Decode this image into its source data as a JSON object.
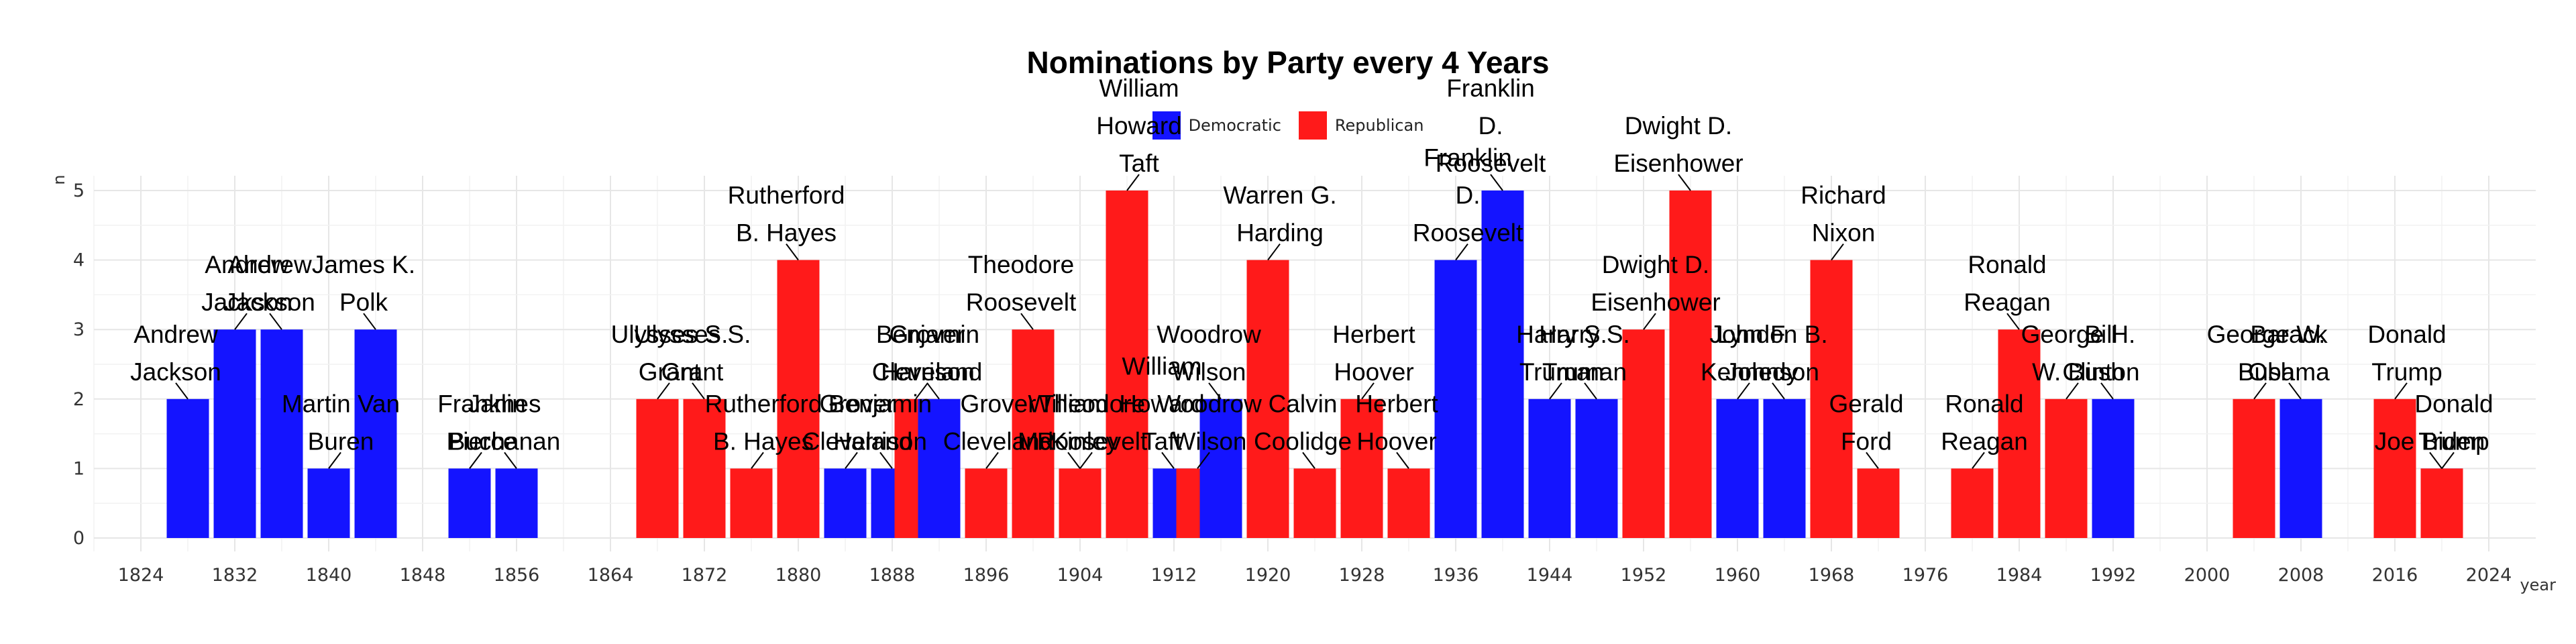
{
  "chart_data": {
    "type": "bar",
    "title": "Nominations by Party every 4 Years",
    "xlabel": "year",
    "ylabel": "n",
    "xlim": [
      1820,
      2028
    ],
    "ylim": [
      0,
      5
    ],
    "x_ticks": [
      1824,
      1832,
      1840,
      1848,
      1856,
      1864,
      1872,
      1880,
      1888,
      1896,
      1904,
      1912,
      1920,
      1928,
      1936,
      1944,
      1952,
      1960,
      1968,
      1976,
      1984,
      1992,
      2000,
      2008,
      2016,
      2024
    ],
    "y_ticks": [
      0,
      1,
      2,
      3,
      4,
      5
    ],
    "grid": true,
    "legend_position": "top",
    "series": [
      {
        "name": "Democratic",
        "color": "#1414FF"
      },
      {
        "name": "Republican",
        "color": "#FF1A1A"
      }
    ],
    "bars": [
      {
        "year": 1828,
        "party": "Democratic",
        "n": 2
      },
      {
        "year": 1832,
        "party": "Democratic",
        "n": 3
      },
      {
        "year": 1836,
        "party": "Democratic",
        "n": 3
      },
      {
        "year": 1840,
        "party": "Democratic",
        "n": 1
      },
      {
        "year": 1844,
        "party": "Democratic",
        "n": 3
      },
      {
        "year": 1852,
        "party": "Democratic",
        "n": 1
      },
      {
        "year": 1856,
        "party": "Democratic",
        "n": 1
      },
      {
        "year": 1868,
        "party": "Republican",
        "n": 2
      },
      {
        "year": 1872,
        "party": "Republican",
        "n": 2
      },
      {
        "year": 1876,
        "party": "Republican",
        "n": 1
      },
      {
        "year": 1880,
        "party": "Republican",
        "n": 4
      },
      {
        "year": 1884,
        "party": "Democratic",
        "n": 1
      },
      {
        "year": 1888,
        "party": "Democratic",
        "n": 1
      },
      {
        "year": 1890,
        "party": "Republican",
        "n": 2
      },
      {
        "year": 1892,
        "party": "Democratic",
        "n": 2
      },
      {
        "year": 1896,
        "party": "Republican",
        "n": 1
      },
      {
        "year": 1900,
        "party": "Republican",
        "n": 3
      },
      {
        "year": 1904,
        "party": "Republican",
        "n": 1
      },
      {
        "year": 1908,
        "party": "Republican",
        "n": 5
      },
      {
        "year": 1912,
        "party": "Democratic",
        "n": 1
      },
      {
        "year": 1914,
        "party": "Republican",
        "n": 1
      },
      {
        "year": 1916,
        "party": "Democratic",
        "n": 2
      },
      {
        "year": 1920,
        "party": "Republican",
        "n": 4
      },
      {
        "year": 1924,
        "party": "Republican",
        "n": 1
      },
      {
        "year": 1928,
        "party": "Republican",
        "n": 2
      },
      {
        "year": 1932,
        "party": "Republican",
        "n": 1
      },
      {
        "year": 1936,
        "party": "Democratic",
        "n": 4
      },
      {
        "year": 1940,
        "party": "Democratic",
        "n": 5
      },
      {
        "year": 1944,
        "party": "Democratic",
        "n": 2
      },
      {
        "year": 1948,
        "party": "Democratic",
        "n": 2
      },
      {
        "year": 1952,
        "party": "Republican",
        "n": 3
      },
      {
        "year": 1956,
        "party": "Republican",
        "n": 5
      },
      {
        "year": 1960,
        "party": "Democratic",
        "n": 2
      },
      {
        "year": 1964,
        "party": "Democratic",
        "n": 2
      },
      {
        "year": 1968,
        "party": "Republican",
        "n": 4
      },
      {
        "year": 1972,
        "party": "Republican",
        "n": 1
      },
      {
        "year": 1980,
        "party": "Republican",
        "n": 1
      },
      {
        "year": 1984,
        "party": "Republican",
        "n": 3
      },
      {
        "year": 1988,
        "party": "Republican",
        "n": 2
      },
      {
        "year": 1992,
        "party": "Democratic",
        "n": 2
      },
      {
        "year": 2004,
        "party": "Republican",
        "n": 2
      },
      {
        "year": 2008,
        "party": "Democratic",
        "n": 2
      },
      {
        "year": 2016,
        "party": "Republican",
        "n": 2
      },
      {
        "year": 2020,
        "party": "Democratic",
        "n": 1
      },
      {
        "year": 2020,
        "party": "Republican",
        "n": 1
      }
    ],
    "annotations": [
      {
        "text": [
          "Andrew",
          "Jackson"
        ],
        "year": 1828,
        "n": 2
      },
      {
        "text": [
          "Andrew",
          "Jackson"
        ],
        "year": 1832,
        "n": 3
      },
      {
        "text": [
          "Andrew",
          "Jackson"
        ],
        "year": 1836,
        "n": 3
      },
      {
        "text": [
          "Martin Van",
          "Buren"
        ],
        "year": 1840,
        "n": 1
      },
      {
        "text": [
          "James K.",
          "Polk"
        ],
        "year": 1844,
        "n": 3
      },
      {
        "text": [
          "Franklin",
          "Pierce"
        ],
        "year": 1852,
        "n": 1
      },
      {
        "text": [
          "James",
          "Buchanan"
        ],
        "year": 1856,
        "n": 1
      },
      {
        "text": [
          "Ulysses S.",
          "Grant"
        ],
        "year": 1868,
        "n": 2
      },
      {
        "text": [
          "Ulysses S.",
          "Grant"
        ],
        "year": 1872,
        "n": 2
      },
      {
        "text": [
          "Rutherford",
          "B. Hayes"
        ],
        "year": 1876,
        "n": 1
      },
      {
        "text": [
          "Rutherford",
          "B. Hayes"
        ],
        "year": 1880,
        "n": 4
      },
      {
        "text": [
          "Grover",
          "Cleveland"
        ],
        "year": 1884,
        "n": 1
      },
      {
        "text": [
          "Benjamin",
          "Harrison"
        ],
        "year": 1888,
        "n": 1
      },
      {
        "text": [
          "Benjamin",
          "Harrison"
        ],
        "year": 1890,
        "n": 2
      },
      {
        "text": [
          "Grover",
          "Cleveland"
        ],
        "year": 1892,
        "n": 2
      },
      {
        "text": [
          "Grover",
          "Cleveland"
        ],
        "year": 1896,
        "n": 1
      },
      {
        "text": [
          "Theodore",
          "Roosevelt"
        ],
        "year": 1900,
        "n": 3
      },
      {
        "text": [
          "Theodore",
          "Roosevelt"
        ],
        "year": 1904,
        "n": 1
      },
      {
        "text": [
          "William",
          "McKinley"
        ],
        "year": 1904,
        "n": 1
      },
      {
        "text": [
          "William",
          "Howard",
          "Taft"
        ],
        "year": 1908,
        "n": 5
      },
      {
        "text": [
          "William",
          "Howard",
          "Taft"
        ],
        "year": 1912,
        "n": 1
      },
      {
        "text": [
          "Woodrow",
          "Wilson"
        ],
        "year": 1914,
        "n": 1
      },
      {
        "text": [
          "Woodrow",
          "Wilson"
        ],
        "year": 1916,
        "n": 2
      },
      {
        "text": [
          "Warren G.",
          "Harding"
        ],
        "year": 1920,
        "n": 4
      },
      {
        "text": [
          "Calvin",
          "Coolidge"
        ],
        "year": 1924,
        "n": 1
      },
      {
        "text": [
          "Herbert",
          "Hoover"
        ],
        "year": 1928,
        "n": 2
      },
      {
        "text": [
          "Herbert",
          "Hoover"
        ],
        "year": 1932,
        "n": 1
      },
      {
        "text": [
          "Franklin",
          "D.",
          "Roosevelt"
        ],
        "year": 1936,
        "n": 4
      },
      {
        "text": [
          "Franklin",
          "D.",
          "Roosevelt"
        ],
        "year": 1940,
        "n": 5
      },
      {
        "text": [
          "Harry S.",
          "Truman"
        ],
        "year": 1944,
        "n": 2
      },
      {
        "text": [
          "Harry S.",
          "Truman"
        ],
        "year": 1948,
        "n": 2
      },
      {
        "text": [
          "Dwight D.",
          "Eisenhower"
        ],
        "year": 1952,
        "n": 3
      },
      {
        "text": [
          "Dwight D.",
          "Eisenhower"
        ],
        "year": 1956,
        "n": 5
      },
      {
        "text": [
          "John F.",
          "Kennedy"
        ],
        "year": 1960,
        "n": 2
      },
      {
        "text": [
          "Lyndon B.",
          "Johnson"
        ],
        "year": 1964,
        "n": 2
      },
      {
        "text": [
          "Richard",
          "Nixon"
        ],
        "year": 1968,
        "n": 4
      },
      {
        "text": [
          "Gerald",
          "Ford"
        ],
        "year": 1972,
        "n": 1
      },
      {
        "text": [
          "Ronald",
          "Reagan"
        ],
        "year": 1980,
        "n": 1
      },
      {
        "text": [
          "Ronald",
          "Reagan"
        ],
        "year": 1984,
        "n": 3
      },
      {
        "text": [
          "George H.",
          "W. Bush"
        ],
        "year": 1988,
        "n": 2
      },
      {
        "text": [
          "Bill",
          "Clinton"
        ],
        "year": 1992,
        "n": 2
      },
      {
        "text": [
          "George W.",
          "Bush"
        ],
        "year": 2004,
        "n": 2
      },
      {
        "text": [
          "Barack",
          "Obama"
        ],
        "year": 2008,
        "n": 2
      },
      {
        "text": [
          "Donald",
          "Trump"
        ],
        "year": 2016,
        "n": 2
      },
      {
        "text": [
          "Joe Biden"
        ],
        "year": 2020,
        "n": 1
      },
      {
        "text": [
          "Donald",
          "Trump"
        ],
        "year": 2020,
        "n": 1
      }
    ]
  }
}
